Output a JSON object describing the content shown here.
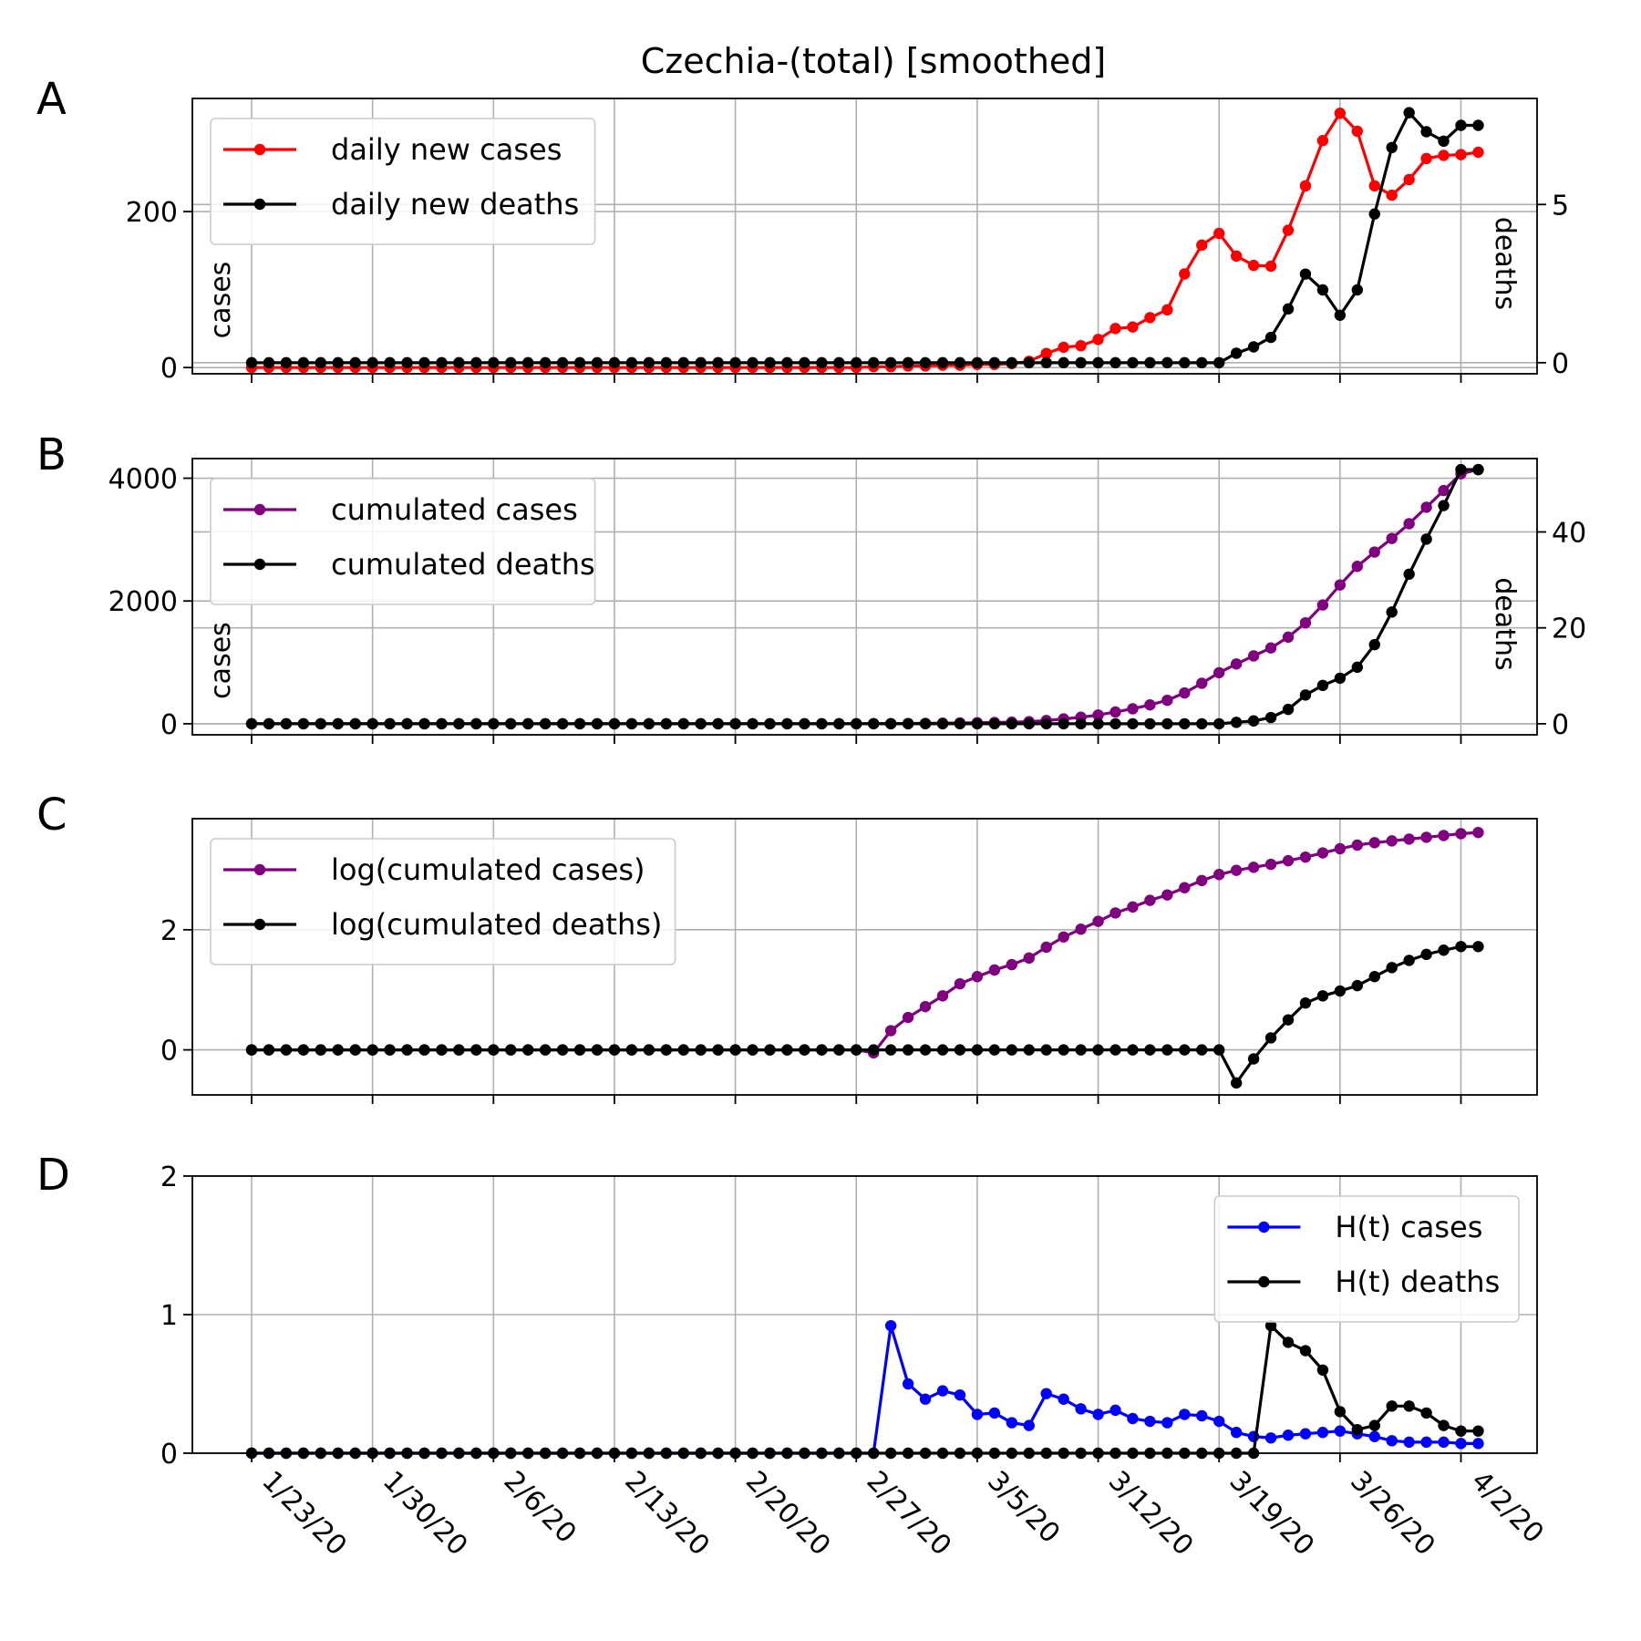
{
  "title": "Czechia-(total) [smoothed]",
  "chart_data": [
    {
      "panel": "A",
      "type": "line",
      "x_dates": [
        "1/23/20",
        "1/24/20",
        "1/25/20",
        "1/26/20",
        "1/27/20",
        "1/28/20",
        "1/29/20",
        "1/30/20",
        "1/31/20",
        "2/1/20",
        "2/2/20",
        "2/3/20",
        "2/4/20",
        "2/5/20",
        "2/6/20",
        "2/7/20",
        "2/8/20",
        "2/9/20",
        "2/10/20",
        "2/11/20",
        "2/12/20",
        "2/13/20",
        "2/14/20",
        "2/15/20",
        "2/16/20",
        "2/17/20",
        "2/18/20",
        "2/19/20",
        "2/20/20",
        "2/21/20",
        "2/22/20",
        "2/23/20",
        "2/24/20",
        "2/25/20",
        "2/26/20",
        "2/27/20",
        "2/28/20",
        "2/29/20",
        "3/1/20",
        "3/2/20",
        "3/3/20",
        "3/4/20",
        "3/5/20",
        "3/6/20",
        "3/7/20",
        "3/8/20",
        "3/9/20",
        "3/10/20",
        "3/11/20",
        "3/12/20",
        "3/13/20",
        "3/14/20",
        "3/15/20",
        "3/16/20",
        "3/17/20",
        "3/18/20",
        "3/19/20",
        "3/20/20",
        "3/21/20",
        "3/22/20",
        "3/23/20",
        "3/24/20",
        "3/25/20",
        "3/26/20",
        "3/27/20",
        "3/28/20",
        "3/29/20",
        "3/30/20",
        "3/31/20",
        "4/1/20",
        "4/2/20",
        "4/3/20"
      ],
      "xticks": [
        "1/23/20",
        "1/30/20",
        "2/6/20",
        "2/13/20",
        "2/20/20",
        "2/27/20",
        "3/5/20",
        "3/12/20",
        "3/19/20",
        "3/26/20",
        "4/2/20"
      ],
      "ylabel_left": "cases",
      "ylabel_right": "deaths",
      "ylim_left": [
        -8,
        345
      ],
      "ylim_right": [
        -0.35,
        8.35
      ],
      "yticks_left": [
        0,
        200
      ],
      "yticks_right": [
        0,
        5
      ],
      "legend": "top-left",
      "grid": true,
      "series": [
        {
          "name": "daily new cases",
          "color": "#ff0000",
          "axis": "left",
          "values": [
            0,
            0,
            0,
            0,
            0,
            0,
            0,
            0,
            0,
            0,
            0,
            0,
            0,
            0,
            0,
            0,
            0,
            0,
            0,
            0,
            0,
            0,
            0,
            0,
            0,
            0,
            0,
            0,
            0,
            0,
            0,
            0,
            0,
            0,
            0,
            0,
            1,
            1,
            2,
            2,
            3,
            3,
            4,
            4,
            5,
            8,
            18,
            26,
            28,
            36,
            50,
            52,
            64,
            74,
            120,
            157,
            172,
            143,
            131,
            130,
            176,
            233,
            291,
            326,
            303,
            233,
            221,
            241,
            268,
            272,
            273,
            276
          ]
        },
        {
          "name": "daily new deaths",
          "color": "#000000",
          "axis": "right",
          "values": [
            0,
            0,
            0,
            0,
            0,
            0,
            0,
            0,
            0,
            0,
            0,
            0,
            0,
            0,
            0,
            0,
            0,
            0,
            0,
            0,
            0,
            0,
            0,
            0,
            0,
            0,
            0,
            0,
            0,
            0,
            0,
            0,
            0,
            0,
            0,
            0,
            0,
            0,
            0,
            0,
            0,
            0,
            0,
            0,
            0,
            0,
            0,
            0,
            0,
            0,
            0,
            0,
            0,
            0,
            0,
            0,
            0,
            0.3,
            0.5,
            0.8,
            1.7,
            2.8,
            2.3,
            1.5,
            2.3,
            4.7,
            6.8,
            7.9,
            7.3,
            7.0,
            7.5,
            7.5
          ]
        }
      ]
    },
    {
      "panel": "B",
      "type": "line",
      "ylabel_left": "cases",
      "ylabel_right": "deaths",
      "ylim_left": [
        -180,
        4320
      ],
      "ylim_right": [
        -2.3,
        55.3
      ],
      "yticks_left": [
        0,
        2000,
        4000
      ],
      "yticks_right": [
        0,
        20,
        40
      ],
      "legend": "top-left",
      "grid": true,
      "series": [
        {
          "name": "cumulated cases",
          "color": "#800080",
          "axis": "left",
          "values": [
            0,
            0,
            0,
            0,
            0,
            0,
            0,
            0,
            0,
            0,
            0,
            0,
            0,
            0,
            0,
            0,
            0,
            0,
            0,
            0,
            0,
            0,
            0,
            0,
            0,
            0,
            0,
            0,
            0,
            0,
            0,
            0,
            0,
            0,
            0,
            0,
            2,
            3,
            5,
            7,
            10,
            13,
            17,
            21,
            26,
            34,
            52,
            78,
            106,
            142,
            192,
            244,
            308,
            382,
            502,
            659,
            831,
            974,
            1105,
            1235,
            1411,
            1644,
            1935,
            2261,
            2564,
            2797,
            3018,
            3259,
            3527,
            3799,
            4072,
            4140
          ]
        },
        {
          "name": "cumulated deaths",
          "color": "#000000",
          "axis": "left_scaled_right",
          "values": [
            0,
            0,
            0,
            0,
            0,
            0,
            0,
            0,
            0,
            0,
            0,
            0,
            0,
            0,
            0,
            0,
            0,
            0,
            0,
            0,
            0,
            0,
            0,
            0,
            0,
            0,
            0,
            0,
            0,
            0,
            0,
            0,
            0,
            0,
            0,
            0,
            0,
            0,
            0,
            0,
            0,
            0,
            0,
            0,
            0,
            0,
            0,
            0,
            0,
            0,
            0,
            0,
            0,
            0,
            0,
            0,
            0,
            0.3,
            0.6,
            1.3,
            3,
            6,
            8,
            9.5,
            11.8,
            16.5,
            23.3,
            31.2,
            38.5,
            45.5,
            53,
            53
          ]
        }
      ]
    },
    {
      "panel": "C",
      "type": "line",
      "ylim": [
        -0.75,
        3.85
      ],
      "yticks": [
        0,
        2
      ],
      "legend": "top-left",
      "grid": true,
      "series": [
        {
          "name": "log(cumulated cases)",
          "color": "#800080",
          "values": [
            0,
            0,
            0,
            0,
            0,
            0,
            0,
            0,
            0,
            0,
            0,
            0,
            0,
            0,
            0,
            0,
            0,
            0,
            0,
            0,
            0,
            0,
            0,
            0,
            0,
            0,
            0,
            0,
            0,
            0,
            0,
            0,
            0,
            0,
            0,
            0,
            -0.05,
            0.32,
            0.54,
            0.72,
            0.9,
            1.1,
            1.22,
            1.33,
            1.42,
            1.53,
            1.71,
            1.88,
            2.01,
            2.14,
            2.28,
            2.38,
            2.49,
            2.58,
            2.7,
            2.82,
            2.92,
            2.99,
            3.04,
            3.09,
            3.15,
            3.21,
            3.28,
            3.35,
            3.41,
            3.45,
            3.48,
            3.51,
            3.54,
            3.57,
            3.6,
            3.62
          ]
        },
        {
          "name": "log(cumulated deaths)",
          "color": "#000000",
          "values": [
            0,
            0,
            0,
            0,
            0,
            0,
            0,
            0,
            0,
            0,
            0,
            0,
            0,
            0,
            0,
            0,
            0,
            0,
            0,
            0,
            0,
            0,
            0,
            0,
            0,
            0,
            0,
            0,
            0,
            0,
            0,
            0,
            0,
            0,
            0,
            0,
            0,
            0,
            0,
            0,
            0,
            0,
            0,
            0,
            0,
            0,
            0,
            0,
            0,
            0,
            0,
            0,
            0,
            0,
            0,
            0,
            0,
            -0.55,
            -0.15,
            0.2,
            0.5,
            0.78,
            0.9,
            0.98,
            1.07,
            1.22,
            1.37,
            1.49,
            1.59,
            1.66,
            1.72,
            1.72
          ]
        }
      ]
    },
    {
      "panel": "D",
      "type": "line",
      "ylim": [
        0,
        2
      ],
      "yticks": [
        0,
        1,
        2
      ],
      "legend": "top-right",
      "grid": true,
      "series": [
        {
          "name": "H(t) cases",
          "color": "#0000ff",
          "values": [
            0,
            0,
            0,
            0,
            0,
            0,
            0,
            0,
            0,
            0,
            0,
            0,
            0,
            0,
            0,
            0,
            0,
            0,
            0,
            0,
            0,
            0,
            0,
            0,
            0,
            0,
            0,
            0,
            0,
            0,
            0,
            0,
            0,
            0,
            0,
            0,
            0,
            0.92,
            0.5,
            0.39,
            0.45,
            0.42,
            0.28,
            0.29,
            0.22,
            0.2,
            0.43,
            0.39,
            0.32,
            0.28,
            0.31,
            0.25,
            0.23,
            0.22,
            0.28,
            0.27,
            0.23,
            0.15,
            0.12,
            0.11,
            0.13,
            0.14,
            0.15,
            0.16,
            0.14,
            0.12,
            0.09,
            0.08,
            0.08,
            0.08,
            0.07,
            0.07
          ]
        },
        {
          "name": "H(t) deaths",
          "color": "#000000",
          "values": [
            0,
            0,
            0,
            0,
            0,
            0,
            0,
            0,
            0,
            0,
            0,
            0,
            0,
            0,
            0,
            0,
            0,
            0,
            0,
            0,
            0,
            0,
            0,
            0,
            0,
            0,
            0,
            0,
            0,
            0,
            0,
            0,
            0,
            0,
            0,
            0,
            0,
            0,
            0,
            0,
            0,
            0,
            0,
            0,
            0,
            0,
            0,
            0,
            0,
            0,
            0,
            0,
            0,
            0,
            0,
            0,
            0,
            0,
            0,
            0.92,
            0.8,
            0.74,
            0.6,
            0.3,
            0.17,
            0.2,
            0.34,
            0.34,
            0.29,
            0.2,
            0.16,
            0.16
          ]
        }
      ]
    }
  ]
}
